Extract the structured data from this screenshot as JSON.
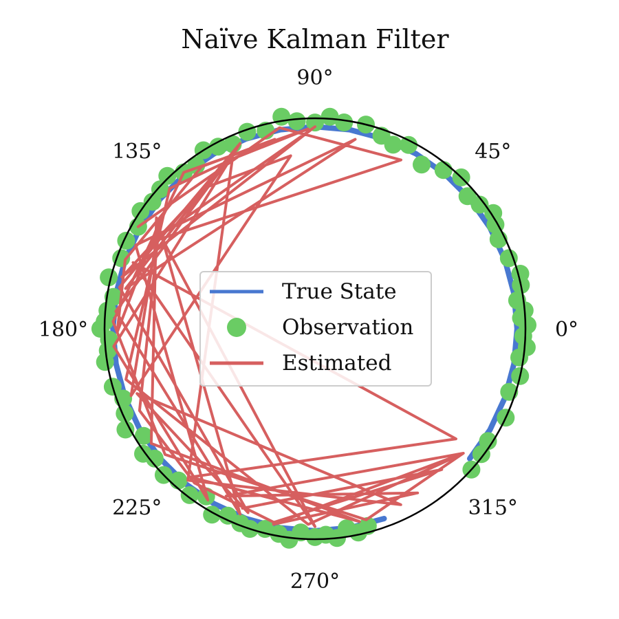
{
  "chart_data": {
    "type": "polar-line",
    "title": "Naïve Kalman Filter",
    "angle_unit": "degrees",
    "radial_range": [
      0,
      1
    ],
    "grid": false,
    "angular_ticks": [
      {
        "angle": 0,
        "label": "0°"
      },
      {
        "angle": 45,
        "label": "45°"
      },
      {
        "angle": 90,
        "label": "90°"
      },
      {
        "angle": 135,
        "label": "135°"
      },
      {
        "angle": 180,
        "label": "180°"
      },
      {
        "angle": 225,
        "label": "225°"
      },
      {
        "angle": 270,
        "label": "270°"
      },
      {
        "angle": 315,
        "label": "315°"
      }
    ],
    "legend": {
      "position": "center",
      "entries": [
        {
          "label": "True State",
          "kind": "line",
          "color": "#4878d0"
        },
        {
          "label": "Observation",
          "kind": "marker",
          "color": "#6acc64"
        },
        {
          "label": "Estimated",
          "kind": "line",
          "color": "#d65f5f"
        }
      ]
    },
    "series": [
      {
        "name": "True State",
        "kind": "line",
        "color": "#4878d0",
        "theta_deg": [
          -40,
          -30,
          -20,
          -10,
          0,
          10,
          20,
          30,
          40,
          50,
          60,
          70,
          80,
          90,
          100,
          110,
          120,
          130,
          140,
          150,
          160,
          170,
          180,
          190,
          200,
          210,
          220,
          230,
          240,
          250,
          260,
          270,
          280,
          290
        ],
        "r": [
          0.96,
          0.96,
          0.96,
          0.96,
          0.96,
          0.96,
          0.96,
          0.96,
          0.96,
          0.96,
          0.96,
          0.96,
          0.96,
          0.96,
          0.96,
          0.96,
          0.96,
          0.96,
          0.96,
          0.96,
          0.96,
          0.96,
          0.96,
          0.96,
          0.96,
          0.96,
          0.96,
          0.96,
          0.96,
          0.96,
          0.96,
          0.96,
          0.96,
          0.96
        ]
      },
      {
        "name": "Observation",
        "kind": "scatter",
        "color": "#6acc64",
        "theta_deg": [
          -42,
          -37,
          -33,
          -25,
          -18,
          -13,
          -8,
          -5,
          -2,
          1,
          3,
          5,
          8,
          12,
          15,
          20,
          26,
          30,
          33,
          37,
          41,
          46,
          51,
          57,
          63,
          67,
          71,
          76,
          82,
          86,
          90,
          95,
          99,
          104,
          109,
          114,
          118,
          122,
          126,
          130,
          134,
          138,
          142,
          146,
          150,
          155,
          160,
          166,
          171,
          175,
          178,
          180,
          183,
          186,
          189,
          196,
          200,
          204,
          208,
          212,
          216,
          219,
          224,
          228,
          233,
          237,
          241,
          245,
          249,
          252,
          256,
          260,
          263,
          266,
          270,
          273,
          276,
          279,
          282,
          285
        ],
        "r": [
          1.0,
          0.99,
          0.98,
          1.0,
          0.97,
          1.0,
          0.98,
          1.01,
          0.99,
          1.01,
          0.98,
          1.0,
          0.97,
          1.0,
          1.01,
          0.98,
          0.97,
          0.99,
          1.01,
          0.98,
          0.96,
          1.0,
          0.97,
          0.93,
          0.98,
          0.95,
          0.97,
          1.0,
          0.99,
          1.01,
          0.98,
          0.99,
          1.02,
          0.97,
          0.99,
          0.96,
          0.98,
          1.0,
          0.96,
          0.97,
          1.01,
          0.99,
          0.98,
          1.0,
          0.97,
          0.99,
          0.98,
          1.01,
          0.97,
          0.99,
          1.0,
          1.02,
          0.98,
          0.99,
          1.01,
          1.0,
          0.97,
          0.99,
          1.02,
          0.96,
          1.01,
          0.98,
          1.0,
          0.97,
          0.99,
          0.95,
          1.01,
          0.98,
          0.99,
          1.0,
          0.98,
          0.99,
          1.01,
          0.97,
          0.99,
          0.98,
          1.0,
          0.96,
          0.99,
          0.97
        ]
      },
      {
        "name": "Estimated",
        "kind": "line",
        "color": "#d65f5f",
        "points_deg_r": [
          [
            150,
            0.97
          ],
          [
            100,
            0.97
          ],
          [
            63,
            0.9
          ],
          [
            152,
            0.88
          ],
          [
            90,
            0.96
          ],
          [
            165,
            0.95
          ],
          [
            128,
            0.85
          ],
          [
            98,
            0.83
          ],
          [
            200,
            0.93
          ],
          [
            148,
            0.88
          ],
          [
            270,
            0.94
          ],
          [
            160,
            0.92
          ],
          [
            322,
            0.85
          ],
          [
            230,
            0.92
          ],
          [
            283,
            0.94
          ],
          [
            215,
            0.95
          ],
          [
            145,
            0.92
          ],
          [
            248,
            0.95
          ],
          [
            175,
            0.95
          ],
          [
            115,
            0.92
          ],
          [
            230,
            0.94
          ],
          [
            296,
            0.93
          ],
          [
            200,
            0.9
          ],
          [
            250,
            0.93
          ],
          [
            168,
            0.95
          ],
          [
            112,
            0.95
          ],
          [
            185,
            0.96
          ],
          [
            238,
            0.96
          ],
          [
            155,
            0.94
          ],
          [
            78,
            0.92
          ],
          [
            168,
            0.92
          ],
          [
            118,
            0.9
          ],
          [
            92,
            0.95
          ],
          [
            130,
            0.97
          ],
          [
            178,
            0.96
          ],
          [
            220,
            0.93
          ],
          [
            285,
            0.94
          ],
          [
            320,
            0.92
          ],
          [
            258,
            0.95
          ],
          [
            302,
            0.92
          ],
          [
            242,
            0.9
          ],
          [
            320,
            0.92
          ],
          [
            268,
            0.93
          ],
          [
            195,
            0.93
          ],
          [
            136,
            0.96
          ],
          [
            102,
            0.92
          ],
          [
            125,
            0.94
          ],
          [
            160,
            0.96
          ],
          [
            181,
            0.94
          ],
          [
            145,
            0.9
          ],
          [
            205,
            0.92
          ],
          [
            232,
            0.93
          ],
          [
            258,
            0.94
          ],
          [
            312,
            0.9
          ],
          [
            248,
            0.92
          ]
        ]
      }
    ]
  }
}
